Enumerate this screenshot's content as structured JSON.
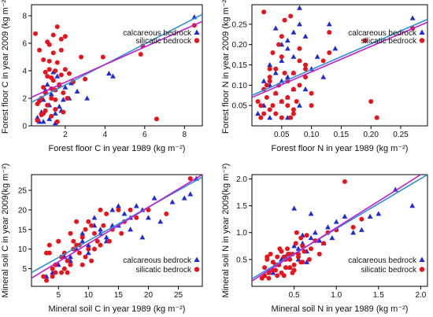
{
  "colors": {
    "calcareous": "#1f2bd6",
    "silicatic": "#e8141c",
    "line_blue": "#2b8fd6",
    "line_magenta": "#c21bd1"
  },
  "chart_data": [
    {
      "type": "scatter",
      "panel": "top-left",
      "xlabel": "Forest floor C in year 1989 (kg m⁻²)",
      "ylabel": "Forest floor C in year 2009 (kg m⁻²)",
      "xlim": [
        0.3,
        8.9
      ],
      "ylim": [
        0,
        8.8
      ],
      "xticks": [
        2,
        4,
        6,
        8
      ],
      "yticks": [
        0,
        2,
        4,
        6,
        8
      ],
      "xtick_labels": [
        "2",
        "4",
        "6",
        "8"
      ],
      "ytick_labels": [
        "0",
        "2",
        "4",
        "6",
        "8"
      ],
      "legend": {
        "position": "top-right",
        "entries": [
          "calcareous bedrock",
          "silicatic bedrock"
        ]
      },
      "series": [
        {
          "name": "calcareous bedrock",
          "marker": "triangle",
          "x": [
            0.8,
            1.2,
            1.5,
            0.9,
            1.3,
            1.8,
            2.2,
            1.1,
            1.6,
            0.6,
            1.0,
            2.6,
            1.4,
            3.1,
            4.4,
            4.2,
            2.0,
            1.7,
            0.7,
            1.9,
            2.3,
            1.2,
            8.5,
            0.9,
            1.5
          ],
          "y": [
            1.0,
            0.5,
            0.9,
            1.9,
            2.3,
            1.1,
            2.0,
            3.0,
            3.6,
            0.6,
            2.6,
            2.5,
            3.9,
            2.0,
            3.6,
            3.8,
            2.8,
            1.4,
            0.3,
            1.9,
            3.1,
            1.5,
            7.9,
            0.3,
            0.2
          ]
        },
        {
          "name": "silicatic bedrock",
          "marker": "circle",
          "x": [
            0.5,
            0.7,
            0.9,
            1.0,
            1.2,
            1.4,
            1.5,
            1.6,
            1.8,
            2.0,
            1.3,
            1.1,
            0.8,
            1.7,
            1.9,
            2.1,
            0.6,
            1.5,
            1.3,
            1.6,
            1.2,
            1.0,
            0.9,
            2.4,
            2.8,
            3.0,
            3.9,
            5.8,
            5.9,
            8.5,
            6.6,
            1.4,
            1.8,
            1.1,
            0.7,
            0.8,
            1.5,
            2.2,
            1.9,
            1.3,
            1.0,
            1.6,
            1.7,
            1.2,
            0.6,
            1.4,
            2.0,
            1.8,
            1.1,
            0.9,
            1.5,
            1.3
          ],
          "y": [
            6.7,
            5.5,
            4.8,
            3.9,
            4.1,
            3.3,
            2.6,
            7.2,
            5.5,
            4.1,
            2.0,
            1.5,
            0.8,
            3.0,
            2.4,
            2.0,
            0.4,
            1.2,
            3.5,
            4.6,
            5.9,
            1.1,
            2.8,
            3.2,
            5.0,
            3.4,
            5.0,
            5.2,
            5.8,
            7.3,
            0.5,
            6.6,
            6.3,
            3.6,
            1.8,
            2.0,
            4.0,
            3.8,
            1.0,
            0.7,
            2.4,
            0.3,
            2.9,
            4.7,
            1.6,
            5.3,
            6.5,
            3.7,
            6.1,
            0.9,
            1.9,
            2.7
          ]
        }
      ],
      "fit_lines": [
        {
          "color": "blue",
          "x": [
            0.3,
            8.9
          ],
          "y": [
            1.71,
            8.1
          ]
        },
        {
          "color": "magenta",
          "x": [
            0.3,
            8.9
          ],
          "y": [
            2.08,
            7.59
          ]
        }
      ]
    },
    {
      "type": "scatter",
      "panel": "top-right",
      "xlabel": "Forest floor N in year 1989 (kg m⁻²)",
      "ylabel": "Forest floor N in year 2009 (kg m⁻²)",
      "xlim": [
        0.0,
        0.295
      ],
      "ylim": [
        0.0,
        0.298
      ],
      "xticks": [
        0.05,
        0.1,
        0.15,
        0.2,
        0.25
      ],
      "yticks": [
        0.05,
        0.1,
        0.15,
        0.2,
        0.25
      ],
      "xtick_labels": [
        "0.05",
        "0.10",
        "0.15",
        "0.20",
        "0.25"
      ],
      "ytick_labels": [
        "0.05",
        "0.10",
        "0.15",
        "0.20",
        "0.25"
      ],
      "legend": {
        "position": "top-right",
        "entries": [
          "calcareous bedrock",
          "silicatic bedrock"
        ]
      },
      "series": [
        {
          "name": "calcareous bedrock",
          "marker": "triangle",
          "x": [
            0.01,
            0.02,
            0.03,
            0.04,
            0.05,
            0.06,
            0.07,
            0.08,
            0.09,
            0.1,
            0.05,
            0.06,
            0.07,
            0.08,
            0.04,
            0.03,
            0.05,
            0.06,
            0.07,
            0.09,
            0.11,
            0.12,
            0.13,
            0.14,
            0.02,
            0.03,
            0.04,
            0.06,
            0.07,
            0.05,
            0.08,
            0.27,
            0.06
          ],
          "y": [
            0.03,
            0.05,
            0.1,
            0.13,
            0.16,
            0.19,
            0.23,
            0.25,
            0.22,
            0.14,
            0.06,
            0.12,
            0.17,
            0.29,
            0.08,
            0.02,
            0.2,
            0.21,
            0.13,
            0.09,
            0.17,
            0.12,
            0.25,
            0.19,
            0.11,
            0.15,
            0.24,
            0.07,
            0.09,
            0.11,
            0.05,
            0.265,
            0.02
          ]
        },
        {
          "name": "silicatic bedrock",
          "marker": "circle",
          "x": [
            0.01,
            0.015,
            0.02,
            0.02,
            0.025,
            0.03,
            0.03,
            0.035,
            0.04,
            0.04,
            0.045,
            0.05,
            0.05,
            0.055,
            0.06,
            0.06,
            0.065,
            0.07,
            0.07,
            0.075,
            0.08,
            0.08,
            0.09,
            0.09,
            0.1,
            0.1,
            0.12,
            0.13,
            0.13,
            0.19,
            0.2,
            0.21,
            0.27,
            0.015,
            0.025,
            0.035,
            0.045,
            0.055,
            0.065,
            0.02,
            0.03,
            0.04,
            0.05,
            0.06,
            0.07,
            0.08,
            0.09,
            0.03,
            0.05,
            0.07
          ],
          "y": [
            0.06,
            0.05,
            0.03,
            0.09,
            0.07,
            0.04,
            0.12,
            0.05,
            0.08,
            0.14,
            0.1,
            0.06,
            0.17,
            0.13,
            0.05,
            0.11,
            0.02,
            0.09,
            0.13,
            0.06,
            0.1,
            0.16,
            0.14,
            0.12,
            0.08,
            0.05,
            0.16,
            0.18,
            0.23,
            0.21,
            0.06,
            0.02,
            0.24,
            0.02,
            0.1,
            0.18,
            0.2,
            0.26,
            0.27,
            0.28,
            0.14,
            0.03,
            0.22,
            0.07,
            0.04,
            0.19,
            0.15,
            0.11,
            0.02,
            0.03
          ]
        }
      ],
      "fit_lines": [
        {
          "color": "blue",
          "x": [
            0.0,
            0.295
          ],
          "y": [
            0.075,
            0.262
          ]
        },
        {
          "color": "magenta",
          "x": [
            0.0,
            0.295
          ],
          "y": [
            0.07,
            0.255
          ]
        }
      ]
    },
    {
      "type": "scatter",
      "panel": "bottom-left",
      "xlabel": "Mineral soil C in year 1989 (kg m⁻²)",
      "ylabel": "Mineral soil C in year 2009(kg m⁻²)",
      "xlim": [
        0.5,
        29
      ],
      "ylim": [
        0.5,
        29
      ],
      "xticks": [
        5,
        10,
        15,
        20,
        25
      ],
      "yticks": [
        5,
        10,
        15,
        20,
        25
      ],
      "xtick_labels": [
        "5",
        "10",
        "15",
        "20",
        "25"
      ],
      "ytick_labels": [
        "5",
        "10",
        "15",
        "20",
        "25"
      ],
      "legend": {
        "position": "bottom-right",
        "entries": [
          "calcareous bedrock",
          "silicatic bedrock"
        ]
      },
      "series": [
        {
          "name": "calcareous bedrock",
          "marker": "triangle",
          "x": [
            3,
            4,
            5,
            6,
            7,
            8,
            9,
            10,
            11,
            12,
            13,
            14,
            15,
            16,
            17,
            18,
            19,
            20,
            21,
            22,
            24,
            26,
            27,
            28,
            9,
            11,
            13,
            15,
            17,
            19,
            7,
            10,
            12,
            14
          ],
          "y": [
            3,
            4,
            6,
            8,
            7,
            10,
            12,
            9,
            16,
            14,
            13,
            20,
            16,
            19,
            18,
            21,
            20,
            18,
            23,
            17,
            22,
            23,
            24,
            28,
            14,
            18,
            12,
            21,
            15,
            13,
            8,
            11,
            15,
            16
          ]
        },
        {
          "name": "silicatic bedrock",
          "marker": "circle",
          "x": [
            2.5,
            3.0,
            3.5,
            4.0,
            4.5,
            5.0,
            5.5,
            6.0,
            6.5,
            7.0,
            7.5,
            8.0,
            8.5,
            9.0,
            9.5,
            10.0,
            10.5,
            11.0,
            11.5,
            12.0,
            12.5,
            13.0,
            14.0,
            15.0,
            16.0,
            17.0,
            18.0,
            20.0,
            23.0,
            27.0,
            3.0,
            4.0,
            5.0,
            6.0,
            7.0,
            8.0,
            9.0,
            10.0,
            11.0,
            12.0,
            5.5,
            6.5,
            8.5,
            9.5,
            3.5,
            4.5,
            7.5,
            10.5,
            13.5,
            15.5
          ],
          "y": [
            3,
            2,
            9,
            5,
            4,
            12,
            4,
            9,
            7,
            6,
            12,
            17,
            11,
            13,
            8,
            10,
            16,
            14,
            12,
            11,
            16,
            19,
            15,
            20,
            17,
            20,
            18,
            20,
            19,
            28,
            9,
            3,
            12,
            5,
            14,
            11,
            6,
            17,
            10,
            20,
            8,
            4,
            9,
            15,
            11,
            6,
            10,
            7,
            12,
            14
          ]
        }
      ],
      "fit_lines": [
        {
          "color": "blue",
          "x": [
            0.5,
            29
          ],
          "y": [
            4.0,
            28.4
          ]
        },
        {
          "color": "magenta",
          "x": [
            0.5,
            29
          ],
          "y": [
            2.6,
            29.0
          ]
        }
      ]
    },
    {
      "type": "scatter",
      "panel": "bottom-right",
      "xlabel": "Mineral soil N in year 1989 (kg m⁻²)",
      "ylabel": "Mineral soil N in year 2009(kg m⁻²)",
      "xlim": [
        0.0,
        2.08
      ],
      "ylim": [
        0.0,
        2.08
      ],
      "xticks": [
        0.5,
        1.0,
        1.5,
        2.0
      ],
      "yticks": [
        0.5,
        1.0,
        1.5,
        2.0
      ],
      "xtick_labels": [
        "0.5",
        "1.0",
        "1.5",
        "2.0"
      ],
      "ytick_labels": [
        "0.5",
        "1.0",
        "1.5",
        "2.0"
      ],
      "legend": {
        "position": "bottom-right",
        "entries": [
          "calcareous bedrock",
          "silicatic bedrock"
        ]
      },
      "series": [
        {
          "name": "calcareous bedrock",
          "marker": "triangle",
          "x": [
            0.15,
            0.2,
            0.25,
            0.3,
            0.35,
            0.4,
            0.45,
            0.5,
            0.55,
            0.6,
            0.65,
            0.7,
            0.75,
            0.8,
            0.85,
            0.9,
            0.95,
            1.0,
            1.1,
            1.2,
            1.3,
            1.4,
            1.5,
            1.7,
            1.9,
            0.5,
            0.6,
            0.7,
            0.55,
            0.45,
            0.65
          ],
          "y": [
            0.2,
            0.3,
            0.25,
            0.4,
            0.5,
            0.55,
            0.6,
            0.75,
            0.7,
            0.8,
            0.65,
            0.9,
            1.0,
            0.85,
            0.8,
            1.1,
            0.9,
            1.2,
            1.3,
            1.0,
            1.05,
            1.3,
            1.35,
            1.8,
            1.5,
            1.45,
            0.95,
            1.35,
            0.5,
            0.35,
            0.45
          ]
        },
        {
          "name": "silicatic bedrock",
          "marker": "circle",
          "x": [
            0.12,
            0.15,
            0.18,
            0.2,
            0.22,
            0.25,
            0.28,
            0.3,
            0.32,
            0.35,
            0.38,
            0.4,
            0.42,
            0.45,
            0.48,
            0.5,
            0.52,
            0.55,
            0.58,
            0.6,
            0.62,
            0.65,
            0.7,
            0.75,
            0.8,
            0.85,
            0.9,
            1.0,
            1.1,
            1.2,
            1.3,
            0.15,
            0.2,
            0.25,
            0.3,
            0.35,
            0.4,
            0.45,
            0.5,
            0.55,
            0.6,
            0.18,
            0.28,
            0.38,
            0.48,
            0.58,
            0.33,
            0.43,
            0.53,
            0.68
          ],
          "y": [
            0.15,
            0.35,
            0.5,
            0.25,
            0.6,
            0.45,
            0.3,
            0.55,
            0.4,
            0.65,
            0.2,
            0.5,
            0.7,
            0.35,
            0.6,
            0.4,
            0.8,
            0.55,
            0.45,
            0.75,
            0.65,
            0.95,
            0.7,
            0.85,
            0.6,
            0.8,
            1.0,
            1.05,
            1.95,
            1.1,
            1.25,
            0.2,
            0.15,
            0.3,
            0.2,
            0.25,
            0.35,
            0.5,
            0.3,
            0.6,
            0.45,
            0.55,
            0.4,
            0.55,
            0.25,
            0.9,
            0.7,
            0.6,
            1.0,
            0.5
          ]
        }
      ],
      "fit_lines": [
        {
          "color": "blue",
          "x": [
            0.0,
            2.08
          ],
          "y": [
            0.14,
            2.08
          ]
        },
        {
          "color": "magenta",
          "x": [
            0.0,
            2.0
          ],
          "y": [
            0.1,
            2.08
          ]
        }
      ]
    }
  ]
}
